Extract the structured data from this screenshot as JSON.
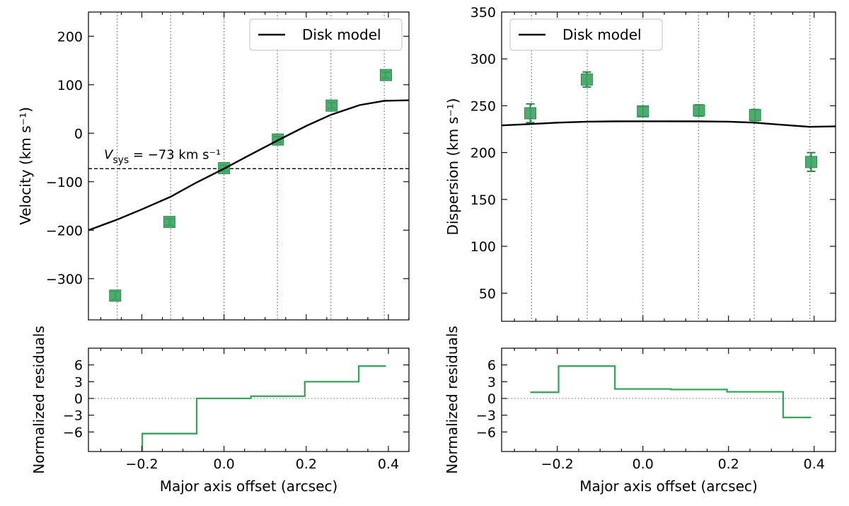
{
  "chart_data": [
    {
      "id": "velocity",
      "type": "scatter",
      "xlabel": "",
      "ylabel": "Velocity (km s⁻¹)",
      "xlim": [
        -0.33,
        0.45
      ],
      "ylim": [
        -385,
        250
      ],
      "xticks": [
        -0.2,
        0.0,
        0.2,
        0.4
      ],
      "yticks": [
        -300,
        -200,
        -100,
        0,
        100,
        200
      ],
      "ytick_labels": [
        "−300",
        "−200",
        "−100",
        "0",
        "100",
        "200"
      ],
      "vlines": [
        -0.26,
        -0.13,
        0.0,
        0.13,
        0.26,
        0.39
      ],
      "series": [
        {
          "name": "",
          "kind": "points",
          "color": "#3aa35f",
          "x": [
            -0.265,
            -0.133,
            0.0,
            0.131,
            0.262,
            0.394
          ],
          "y": [
            -335,
            -183,
            -72,
            -13,
            57,
            120
          ],
          "yerr": [
            8,
            7,
            6,
            6,
            6,
            6
          ]
        },
        {
          "name": "Disk model",
          "kind": "line",
          "color": "#000000",
          "x": [
            -0.33,
            -0.26,
            -0.2,
            -0.13,
            -0.07,
            0.0,
            0.06,
            0.13,
            0.2,
            0.26,
            0.33,
            0.39,
            0.45
          ],
          "y": [
            -200,
            -178,
            -157,
            -131,
            -103,
            -73,
            -46,
            -15,
            15,
            38,
            58,
            67,
            68
          ]
        }
      ],
      "hline": {
        "y": -73,
        "label_main": "V",
        "label_sub": "sys",
        "label_rest": " = −73 km s⁻¹"
      },
      "legend": "top-right",
      "grid": false
    },
    {
      "id": "dispersion",
      "type": "scatter",
      "xlabel": "",
      "ylabel": "Dispersion (km s⁻¹)",
      "xlim": [
        -0.33,
        0.45
      ],
      "ylim": [
        20,
        350
      ],
      "xticks": [
        -0.2,
        0.0,
        0.2,
        0.4
      ],
      "yticks": [
        50,
        100,
        150,
        200,
        250,
        300,
        350
      ],
      "ytick_labels": [
        "50",
        "100",
        "150",
        "200",
        "250",
        "300",
        "350"
      ],
      "vlines": [
        -0.26,
        -0.13,
        0.0,
        0.13,
        0.26,
        0.39
      ],
      "series": [
        {
          "name": "",
          "kind": "points",
          "color": "#3aa35f",
          "x": [
            -0.263,
            -0.131,
            0.0,
            0.131,
            0.262,
            0.393
          ],
          "y": [
            242,
            278,
            244,
            245,
            240,
            190
          ],
          "yerr": [
            10,
            8,
            5,
            6,
            6,
            10
          ]
        },
        {
          "name": "Disk model",
          "kind": "line",
          "color": "#000000",
          "x": [
            -0.33,
            -0.26,
            -0.2,
            -0.13,
            -0.07,
            0.0,
            0.06,
            0.13,
            0.2,
            0.26,
            0.33,
            0.39,
            0.45
          ],
          "y": [
            229,
            230.5,
            232,
            233,
            233.3,
            233.4,
            233.4,
            233.3,
            233,
            232,
            229.5,
            227.5,
            228
          ]
        }
      ],
      "legend": "top-left",
      "grid": false
    },
    {
      "id": "velocity-residuals",
      "type": "line",
      "xlabel": "Major axis offset (arcsec)",
      "ylabel": "Normalized residuals",
      "xlim": [
        -0.33,
        0.45
      ],
      "ylim": [
        -9.5,
        9
      ],
      "xticks": [
        -0.2,
        0.0,
        0.2,
        0.4
      ],
      "xtick_labels": [
        "−0.2",
        "0.0",
        "0.2",
        "0.4"
      ],
      "yticks": [
        -6,
        -3,
        0,
        3,
        6
      ],
      "ytick_labels": [
        "−6",
        "−3",
        "0",
        "3",
        "6"
      ],
      "series": [
        {
          "name": "",
          "kind": "step",
          "color": "#3aa35f",
          "x": [
            -0.265,
            -0.133,
            0.0,
            0.131,
            0.262,
            0.394
          ],
          "y": [
            -13,
            -6.3,
            0.0,
            0.4,
            3.0,
            5.8
          ]
        }
      ],
      "zero_line": true
    },
    {
      "id": "dispersion-residuals",
      "type": "line",
      "xlabel": "Major axis offset (arcsec)",
      "ylabel": "Normalized residuals",
      "xlim": [
        -0.33,
        0.45
      ],
      "ylim": [
        -9.5,
        9
      ],
      "xticks": [
        -0.2,
        0.0,
        0.2,
        0.4
      ],
      "xtick_labels": [
        "−0.2",
        "0.0",
        "0.2",
        "0.4"
      ],
      "yticks": [
        -6,
        -3,
        0,
        3,
        6
      ],
      "ytick_labels": [
        "−6",
        "−3",
        "0",
        "3",
        "6"
      ],
      "series": [
        {
          "name": "",
          "kind": "step",
          "color": "#3aa35f",
          "x": [
            -0.263,
            -0.131,
            0.0,
            0.131,
            0.262,
            0.393
          ],
          "y": [
            1.1,
            5.8,
            1.7,
            1.6,
            1.2,
            -3.4
          ]
        }
      ],
      "zero_line": true
    }
  ]
}
